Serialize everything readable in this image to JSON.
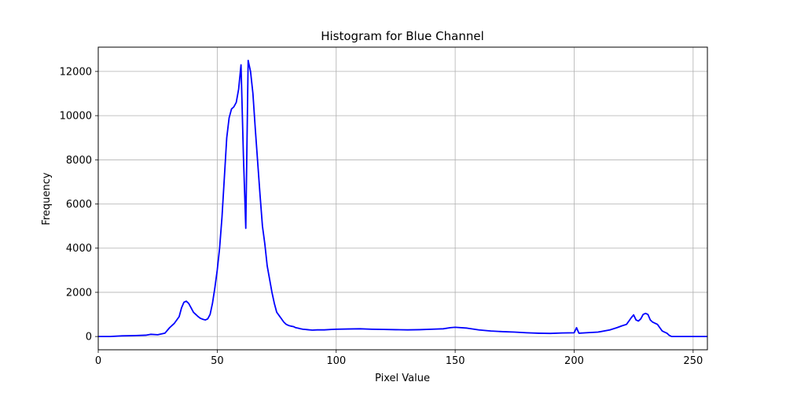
{
  "chart_data": {
    "type": "line",
    "title": "Histogram for Blue Channel",
    "xlabel": "Pixel Value",
    "ylabel": "Frequency",
    "xlim": [
      0,
      256
    ],
    "ylim": [
      -600,
      13100
    ],
    "xticks": [
      0,
      50,
      100,
      150,
      200,
      250
    ],
    "yticks": [
      0,
      2000,
      4000,
      6000,
      8000,
      10000,
      12000
    ],
    "grid": true,
    "series": [
      {
        "color": "#0000ff",
        "x": [
          0,
          5,
          10,
          15,
          20,
          22,
          25,
          28,
          30,
          32,
          34,
          35,
          36,
          37,
          38,
          39,
          40,
          41,
          42,
          43,
          44,
          45,
          46,
          47,
          48,
          49,
          50,
          51,
          52,
          53,
          54,
          55,
          56,
          57,
          58,
          59,
          60,
          61,
          62,
          63,
          64,
          65,
          66,
          67,
          68,
          69,
          70,
          71,
          72,
          73,
          74,
          75,
          76,
          77,
          78,
          79,
          80,
          81,
          82,
          83,
          84,
          85,
          86,
          87,
          88,
          89,
          90,
          92,
          95,
          98,
          100,
          105,
          110,
          115,
          120,
          125,
          130,
          135,
          140,
          145,
          148,
          150,
          155,
          160,
          165,
          170,
          175,
          180,
          185,
          190,
          195,
          200,
          201,
          202,
          205,
          210,
          215,
          218,
          220,
          222,
          223,
          224,
          225,
          226,
          227,
          228,
          229,
          230,
          231,
          232,
          233,
          235,
          236,
          237,
          238,
          239,
          240,
          241,
          245,
          250,
          256
        ],
        "y": [
          0,
          0,
          30,
          40,
          60,
          100,
          80,
          150,
          400,
          600,
          900,
          1300,
          1550,
          1600,
          1500,
          1300,
          1100,
          1000,
          900,
          820,
          780,
          750,
          800,
          1000,
          1500,
          2200,
          3000,
          4000,
          5400,
          7200,
          9000,
          9900,
          10300,
          10400,
          10600,
          11200,
          12300,
          8200,
          4900,
          12500,
          12000,
          11000,
          9400,
          7900,
          6400,
          5000,
          4200,
          3200,
          2600,
          2000,
          1500,
          1100,
          950,
          800,
          650,
          550,
          500,
          470,
          450,
          400,
          380,
          350,
          330,
          320,
          310,
          300,
          290,
          300,
          300,
          320,
          330,
          340,
          350,
          330,
          320,
          310,
          300,
          310,
          330,
          350,
          400,
          420,
          380,
          300,
          250,
          220,
          200,
          170,
          150,
          140,
          160,
          170,
          400,
          150,
          170,
          200,
          300,
          400,
          480,
          550,
          700,
          850,
          980,
          750,
          700,
          800,
          1000,
          1050,
          1000,
          750,
          650,
          550,
          400,
          250,
          200,
          150,
          50,
          0,
          0,
          0,
          0
        ]
      }
    ]
  }
}
